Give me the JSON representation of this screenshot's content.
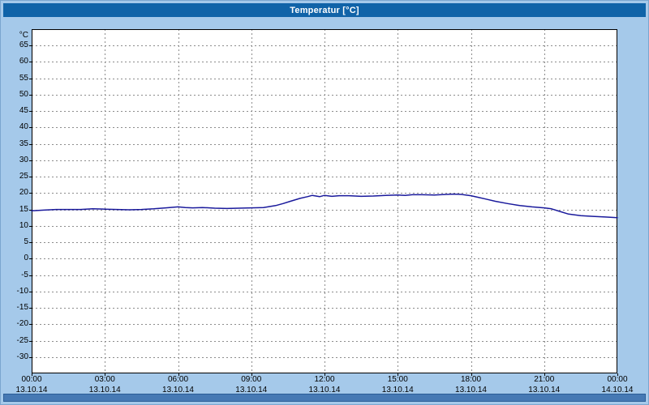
{
  "window": {
    "title": "Temperatur [°C]"
  },
  "colors": {
    "background": "#A5C9EA",
    "titlebar": "#1063A8",
    "titlebar_text": "#FFFFFF",
    "plot_background": "#FFFFFF",
    "grid": "#8C8C8C",
    "frame": "#000000",
    "line": "#1A1A9C",
    "scrollbar": "#4679B4"
  },
  "chart_data": {
    "type": "line",
    "title": "Temperatur [°C]",
    "xlabel": "",
    "ylabel": "°C",
    "ylim": [
      -35,
      70
    ],
    "xlim_hours": [
      0,
      24
    ],
    "grid": true,
    "legend": "none",
    "y_ticks": [
      65,
      60,
      55,
      50,
      45,
      40,
      35,
      30,
      25,
      20,
      15,
      10,
      5,
      0,
      -5,
      -10,
      -15,
      -20,
      -25,
      -30
    ],
    "x_ticks": [
      {
        "hour": 0,
        "time": "00:00",
        "date": "13.10.14"
      },
      {
        "hour": 3,
        "time": "03:00",
        "date": "13.10.14"
      },
      {
        "hour": 6,
        "time": "06:00",
        "date": "13.10.14"
      },
      {
        "hour": 9,
        "time": "09:00",
        "date": "13.10.14"
      },
      {
        "hour": 12,
        "time": "12:00",
        "date": "13.10.14"
      },
      {
        "hour": 15,
        "time": "15:00",
        "date": "13.10.14"
      },
      {
        "hour": 18,
        "time": "18:00",
        "date": "13.10.14"
      },
      {
        "hour": 21,
        "time": "21:00",
        "date": "13.10.14"
      },
      {
        "hour": 24,
        "time": "00:00",
        "date": "14.10.14"
      }
    ],
    "series": [
      {
        "name": "Temperatur",
        "x_hours": [
          0,
          0.5,
          1,
          1.5,
          2,
          2.5,
          3,
          3.5,
          4,
          4.5,
          5,
          5.5,
          6,
          6.3,
          6.6,
          7,
          7.5,
          8,
          8.5,
          9,
          9.5,
          10,
          10.3,
          10.6,
          11,
          11.3,
          11.5,
          11.8,
          12,
          12.3,
          12.6,
          13,
          13.5,
          14,
          14.5,
          15,
          15.3,
          15.6,
          16,
          16.5,
          17,
          17.3,
          17.6,
          18,
          18.3,
          18.6,
          19,
          19.5,
          20,
          20.5,
          21,
          21.3,
          21.6,
          22,
          22.5,
          23,
          23.5,
          24
        ],
        "values": [
          14.6,
          14.8,
          15,
          15,
          15,
          15.2,
          15.1,
          15,
          14.9,
          15,
          15.2,
          15.5,
          15.8,
          15.6,
          15.5,
          15.6,
          15.4,
          15.3,
          15.4,
          15.5,
          15.6,
          16.2,
          16.8,
          17.5,
          18.4,
          18.9,
          19.3,
          18.9,
          19.3,
          19,
          19.2,
          19.2,
          19,
          19.1,
          19.3,
          19.4,
          19.3,
          19.5,
          19.5,
          19.4,
          19.6,
          19.7,
          19.6,
          19.2,
          18.7,
          18.2,
          17.5,
          16.8,
          16.2,
          15.8,
          15.5,
          15.2,
          14.5,
          13.6,
          13.1,
          12.9,
          12.7,
          12.5
        ]
      }
    ]
  }
}
